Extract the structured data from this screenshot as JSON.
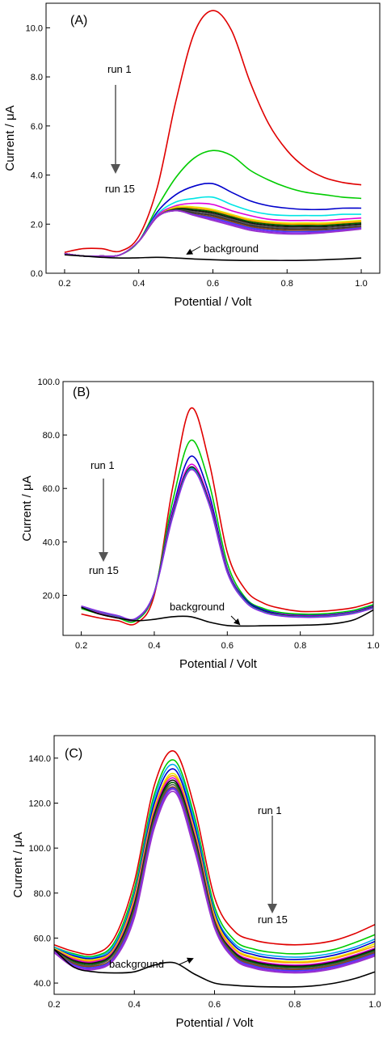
{
  "chart_data": [
    {
      "type": "line",
      "panel_label": "(A)",
      "xlabel": "Potential / Volt",
      "ylabel": "Current / μA",
      "xlim": [
        0.15,
        1.05
      ],
      "ylim": [
        0,
        11
      ],
      "xticks": [
        "0.2",
        "0.4",
        "0.6",
        "0.8",
        "1.0"
      ],
      "yticks": [
        "0.0",
        "2.0",
        "4.0",
        "6.0",
        "8.0",
        "10.0"
      ],
      "grid": false,
      "annotations": {
        "run_start": "run 1",
        "run_end": "run 15",
        "background": "background"
      },
      "peak_potential": 0.61,
      "series_x": [
        0.2,
        0.25,
        0.3,
        0.35,
        0.4,
        0.45,
        0.5,
        0.55,
        0.6,
        0.65,
        0.7,
        0.75,
        0.8,
        0.85,
        0.9,
        0.95,
        1.0
      ],
      "series": [
        {
          "color": "#e00000",
          "values": [
            0.85,
            1.0,
            1.0,
            0.9,
            1.5,
            3.5,
            7.0,
            9.8,
            10.7,
            9.9,
            7.8,
            6.1,
            5.0,
            4.3,
            3.9,
            3.7,
            3.6
          ]
        },
        {
          "color": "#00cc00",
          "values": [
            0.8,
            0.7,
            0.7,
            0.75,
            1.3,
            2.7,
            3.9,
            4.7,
            5.0,
            4.8,
            4.2,
            3.8,
            3.5,
            3.3,
            3.2,
            3.1,
            3.05
          ]
        },
        {
          "color": "#0000cc",
          "values": [
            0.8,
            0.7,
            0.7,
            0.75,
            1.3,
            2.5,
            3.2,
            3.55,
            3.65,
            3.3,
            2.95,
            2.75,
            2.65,
            2.6,
            2.6,
            2.65,
            2.65
          ]
        },
        {
          "color": "#00e5e5",
          "values": [
            0.8,
            0.7,
            0.7,
            0.75,
            1.3,
            2.4,
            2.9,
            3.05,
            3.1,
            2.8,
            2.55,
            2.4,
            2.35,
            2.35,
            2.35,
            2.4,
            2.4
          ]
        },
        {
          "color": "#dd00dd",
          "values": [
            0.8,
            0.7,
            0.7,
            0.75,
            1.3,
            2.35,
            2.75,
            2.85,
            2.8,
            2.55,
            2.35,
            2.2,
            2.15,
            2.15,
            2.15,
            2.2,
            2.25
          ]
        },
        {
          "color": "#e8e800",
          "values": [
            0.8,
            0.7,
            0.7,
            0.75,
            1.3,
            2.3,
            2.7,
            2.7,
            2.6,
            2.4,
            2.2,
            2.1,
            2.05,
            2.05,
            2.05,
            2.1,
            2.15
          ]
        },
        {
          "color": "#ff9900",
          "values": [
            0.8,
            0.7,
            0.7,
            0.75,
            1.3,
            2.3,
            2.65,
            2.65,
            2.55,
            2.35,
            2.15,
            2.05,
            2.0,
            2.0,
            2.0,
            2.05,
            2.1
          ]
        },
        {
          "color": "#006400",
          "values": [
            0.8,
            0.7,
            0.7,
            0.75,
            1.3,
            2.3,
            2.62,
            2.6,
            2.5,
            2.3,
            2.1,
            2.0,
            1.95,
            1.95,
            1.95,
            2.0,
            2.05
          ]
        },
        {
          "color": "#111111",
          "values": [
            0.8,
            0.7,
            0.7,
            0.75,
            1.3,
            2.3,
            2.6,
            2.55,
            2.45,
            2.25,
            2.05,
            1.95,
            1.9,
            1.9,
            1.9,
            1.95,
            2.0
          ]
        },
        {
          "color": "#555555",
          "values": [
            0.8,
            0.7,
            0.7,
            0.75,
            1.3,
            2.3,
            2.58,
            2.5,
            2.4,
            2.2,
            2.0,
            1.9,
            1.85,
            1.85,
            1.85,
            1.9,
            1.95
          ]
        },
        {
          "color": "#333333",
          "values": [
            0.8,
            0.7,
            0.7,
            0.75,
            1.3,
            2.3,
            2.56,
            2.45,
            2.35,
            2.15,
            1.95,
            1.85,
            1.8,
            1.8,
            1.8,
            1.85,
            1.9
          ]
        },
        {
          "color": "#8b4513",
          "values": [
            0.8,
            0.7,
            0.7,
            0.75,
            1.3,
            2.3,
            2.55,
            2.4,
            2.3,
            2.1,
            1.9,
            1.8,
            1.75,
            1.75,
            1.75,
            1.8,
            1.88
          ]
        },
        {
          "color": "#4040ff",
          "values": [
            0.8,
            0.7,
            0.7,
            0.75,
            1.3,
            2.3,
            2.55,
            2.38,
            2.25,
            2.05,
            1.85,
            1.75,
            1.7,
            1.7,
            1.72,
            1.78,
            1.85
          ]
        },
        {
          "color": "#8a2be2",
          "values": [
            0.8,
            0.7,
            0.7,
            0.75,
            1.3,
            2.3,
            2.55,
            2.36,
            2.2,
            2.0,
            1.8,
            1.7,
            1.65,
            1.65,
            1.68,
            1.75,
            1.82
          ]
        },
        {
          "color": "#9932cc",
          "values": [
            0.8,
            0.7,
            0.7,
            0.75,
            1.3,
            2.3,
            2.55,
            2.35,
            2.15,
            1.95,
            1.75,
            1.65,
            1.6,
            1.6,
            1.65,
            1.72,
            1.8
          ]
        },
        {
          "color": "#000000",
          "values": [
            0.75,
            0.7,
            0.65,
            0.62,
            0.63,
            0.65,
            0.62,
            0.58,
            0.55,
            0.53,
            0.52,
            0.52,
            0.52,
            0.53,
            0.55,
            0.58,
            0.62
          ]
        }
      ]
    },
    {
      "type": "line",
      "panel_label": "(B)",
      "xlabel": "Potential / Volt",
      "ylabel": "Current / μA",
      "xlim": [
        0.15,
        1.0
      ],
      "ylim": [
        5,
        100
      ],
      "xticks": [
        "0.2",
        "0.4",
        "0.6",
        "0.8",
        "1.0"
      ],
      "yticks": [
        "20.0",
        "40.0",
        "60.0",
        "80.0",
        "100.0"
      ],
      "grid": false,
      "annotations": {
        "run_start": "run 1",
        "run_end": "run 15",
        "background": "background"
      },
      "peak_potential": 0.51,
      "series_x": [
        0.2,
        0.25,
        0.3,
        0.35,
        0.4,
        0.45,
        0.5,
        0.55,
        0.6,
        0.65,
        0.7,
        0.75,
        0.8,
        0.85,
        0.9,
        0.95,
        1.0
      ],
      "series": [
        {
          "color": "#e00000",
          "values": [
            13,
            11.5,
            10.5,
            9.5,
            20,
            60,
            90,
            70,
            36,
            22,
            17,
            15,
            14,
            14,
            14.5,
            15.5,
            17.5
          ]
        },
        {
          "color": "#00cc00",
          "values": [
            15,
            13,
            11.5,
            10.5,
            21,
            55,
            78,
            62,
            32,
            19,
            15,
            13.5,
            13,
            13,
            13.5,
            14.5,
            16.5
          ]
        },
        {
          "color": "#0000cc",
          "values": [
            15.5,
            13.5,
            12,
            11,
            21,
            52,
            72,
            58,
            30,
            18.5,
            14.5,
            13,
            12.5,
            12.5,
            13,
            14,
            16
          ]
        },
        {
          "color": "#dd00dd",
          "values": [
            15.5,
            13.5,
            12,
            11,
            21,
            51,
            69,
            56,
            29.5,
            18,
            14,
            12.8,
            12.3,
            12.3,
            12.8,
            13.8,
            15.8
          ]
        },
        {
          "color": "#111111",
          "values": [
            15.8,
            13.8,
            12.2,
            11.2,
            21,
            50,
            68,
            55,
            29,
            18,
            14,
            12.6,
            12.1,
            12.1,
            12.6,
            13.6,
            15.6
          ]
        },
        {
          "color": "#00aaaa",
          "values": [
            15.8,
            13.8,
            12.2,
            11.2,
            21,
            49.5,
            67.5,
            54.5,
            28.8,
            17.8,
            13.8,
            12.4,
            12,
            12,
            12.5,
            13.5,
            15.4
          ]
        },
        {
          "color": "#8a2be2",
          "values": [
            16,
            14,
            12.4,
            11.4,
            21,
            49,
            67,
            54,
            28.5,
            17.5,
            13.6,
            12.2,
            11.8,
            11.8,
            12.3,
            13.3,
            15.2
          ]
        },
        {
          "color": "#000000",
          "values": [
            15.5,
            13,
            11.5,
            10.5,
            11,
            12,
            12,
            10,
            8.7,
            8.5,
            8.6,
            8.7,
            8.8,
            9,
            9.5,
            11,
            14.5
          ]
        }
      ]
    },
    {
      "type": "line",
      "panel_label": "(C)",
      "xlabel": "Potential / Volt",
      "ylabel": "Current / μA",
      "xlim": [
        0.2,
        1.0
      ],
      "ylim": [
        35,
        150
      ],
      "xticks": [
        "0.2",
        "0.4",
        "0.6",
        "0.8",
        "1.0"
      ],
      "yticks": [
        "40.0",
        "60.0",
        "80.0",
        "100.0",
        "120.0",
        "140.0"
      ],
      "grid": false,
      "annotations": {
        "run_start": "run 1",
        "run_end": "run 15",
        "background": "background"
      },
      "peak_potential": 0.49,
      "series_x": [
        0.2,
        0.25,
        0.3,
        0.35,
        0.4,
        0.45,
        0.5,
        0.55,
        0.6,
        0.65,
        0.7,
        0.75,
        0.8,
        0.85,
        0.9,
        0.95,
        1.0
      ],
      "series": [
        {
          "color": "#e00000",
          "values": [
            57,
            54,
            53,
            60,
            85,
            128,
            143,
            118,
            78,
            63,
            59,
            57.5,
            57,
            57.5,
            59,
            62,
            66
          ]
        },
        {
          "color": "#00cc00",
          "values": [
            56,
            53,
            52,
            58,
            82,
            124,
            139,
            114,
            74,
            59,
            55,
            53.5,
            53,
            53.5,
            55,
            58,
            61.5
          ]
        },
        {
          "color": "#00aaee",
          "values": [
            56,
            52.5,
            51.5,
            57,
            80,
            122,
            137,
            112,
            72,
            57.5,
            53.5,
            52,
            51.5,
            52,
            53.5,
            56,
            59.5
          ]
        },
        {
          "color": "#0000cc",
          "values": [
            55.5,
            52,
            51,
            56,
            79,
            120,
            135,
            110,
            71,
            56.5,
            52.5,
            51,
            50.5,
            51,
            52.5,
            55,
            58.5
          ]
        },
        {
          "color": "#e8e800",
          "values": [
            55.5,
            51.5,
            50.5,
            55.5,
            78,
            118,
            133,
            108,
            70,
            55.5,
            51.5,
            50,
            49.5,
            50,
            51.5,
            54,
            57.5
          ]
        },
        {
          "color": "#ff9900",
          "values": [
            55,
            51,
            50,
            55,
            77,
            117,
            132,
            107,
            69,
            55,
            51,
            49.5,
            49,
            49.5,
            51,
            53.5,
            56.5
          ]
        },
        {
          "color": "#dd00dd",
          "values": [
            55,
            50.5,
            49.5,
            54.5,
            76,
            116,
            131,
            106,
            68,
            54,
            50,
            48.5,
            48,
            48.5,
            50,
            52.5,
            55.5
          ]
        },
        {
          "color": "#111111",
          "values": [
            55,
            50,
            49,
            54,
            75,
            115,
            130,
            105,
            67.5,
            53.5,
            49.5,
            48,
            47.5,
            48,
            49.5,
            52,
            55
          ]
        },
        {
          "color": "#006400",
          "values": [
            54.5,
            49.5,
            48.5,
            53.5,
            74,
            114,
            129,
            104,
            67,
            53,
            49,
            47.5,
            47,
            47.5,
            49,
            51.5,
            54.5
          ]
        },
        {
          "color": "#555555",
          "values": [
            54.5,
            49,
            48,
            53,
            73,
            113,
            128,
            103,
            66.5,
            52.5,
            48.5,
            47,
            46.5,
            47,
            48.5,
            51,
            54
          ]
        },
        {
          "color": "#8b4513",
          "values": [
            54,
            48.5,
            47.5,
            52,
            72,
            112,
            127,
            102,
            66,
            52,
            48,
            46.5,
            46,
            46.5,
            48,
            50.5,
            53.5
          ]
        },
        {
          "color": "#4040ff",
          "values": [
            54,
            48,
            47,
            51.5,
            71,
            111,
            126.5,
            101,
            65.5,
            51.5,
            47.5,
            46,
            45.5,
            46,
            47.5,
            50,
            53
          ]
        },
        {
          "color": "#8a2be2",
          "values": [
            54,
            47.5,
            46.5,
            51,
            70,
            110,
            126,
            100,
            65,
            51,
            47,
            45.5,
            45,
            45.5,
            47,
            49.5,
            52.5
          ]
        },
        {
          "color": "#9932cc",
          "values": [
            53.5,
            47,
            46,
            50.5,
            69,
            109,
            125,
            99,
            64.5,
            50.5,
            46.5,
            45,
            44.5,
            45,
            46.5,
            49,
            52
          ]
        },
        {
          "color": "#000000",
          "values": [
            55,
            47,
            45,
            44.5,
            45,
            48,
            49,
            44,
            40,
            39,
            38.5,
            38.3,
            38.3,
            38.8,
            40,
            42,
            45
          ]
        }
      ]
    }
  ]
}
